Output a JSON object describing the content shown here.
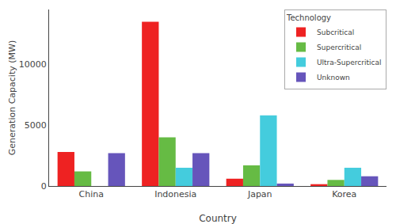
{
  "chart_data": {
    "type": "bar",
    "xlabel": "Country",
    "ylabel": "Generation Capacity (MW)",
    "legend_title": "Technology",
    "categories": [
      "China",
      "Indonesia",
      "Japan",
      "Korea"
    ],
    "series": [
      {
        "name": "Subcritical",
        "color": "#EE2222",
        "values": [
          2800,
          13500,
          600,
          150
        ]
      },
      {
        "name": "Supercritical",
        "color": "#66BB44",
        "values": [
          1200,
          4000,
          1700,
          500
        ]
      },
      {
        "name": "Ultra-Supercritical",
        "color": "#44CCDD",
        "values": [
          0,
          1500,
          5800,
          1500
        ]
      },
      {
        "name": "Unknown",
        "color": "#6655BB",
        "values": [
          2700,
          2700,
          200,
          800
        ]
      }
    ],
    "ylim": [
      0,
      14500
    ],
    "yticks": [
      0,
      5000,
      10000
    ],
    "grid": false,
    "legend": "upper right"
  }
}
